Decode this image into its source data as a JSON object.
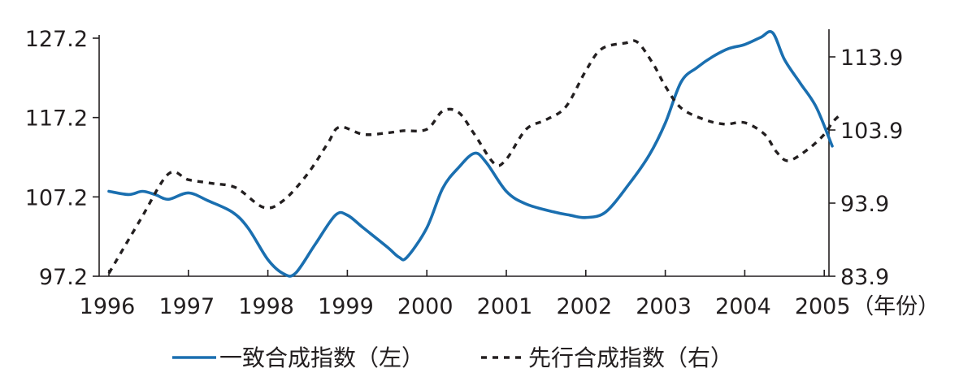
{
  "chart_data": {
    "type": "line",
    "x_unit_label": "（年份）",
    "x_ticks": [
      "1996",
      "1997",
      "1998",
      "1999",
      "2000",
      "2001",
      "2002",
      "2003",
      "2004",
      "2005"
    ],
    "x_range": [
      1996.0,
      2005.1
    ],
    "left_axis": {
      "ticks": [
        "127.2",
        "117.2",
        "107.2",
        "97.2"
      ],
      "range": [
        97.2,
        127.2
      ]
    },
    "right_axis": {
      "ticks": [
        "113.9",
        "103.9",
        "93.9",
        "83.9"
      ],
      "range": [
        83.9,
        116.9
      ]
    },
    "grid": false,
    "legend_position": "bottom",
    "series": [
      {
        "name": "一致合成指数（左）",
        "axis": "left",
        "color": "#1a6fb0",
        "style": "solid",
        "points": [
          [
            1996.0,
            107.9
          ],
          [
            1996.25,
            107.5
          ],
          [
            1996.42,
            107.9
          ],
          [
            1996.58,
            107.5
          ],
          [
            1996.75,
            106.9
          ],
          [
            1997.0,
            107.7
          ],
          [
            1997.25,
            106.7
          ],
          [
            1997.55,
            105.3
          ],
          [
            1997.75,
            103.3
          ],
          [
            1998.0,
            99.3
          ],
          [
            1998.2,
            97.5
          ],
          [
            1998.35,
            97.6
          ],
          [
            1998.6,
            101.3
          ],
          [
            1998.85,
            104.9
          ],
          [
            1999.0,
            104.9
          ],
          [
            1999.2,
            103.3
          ],
          [
            1999.5,
            100.9
          ],
          [
            1999.65,
            99.6
          ],
          [
            1999.75,
            99.6
          ],
          [
            2000.0,
            103.3
          ],
          [
            2000.2,
            108.3
          ],
          [
            2000.4,
            110.9
          ],
          [
            2000.6,
            112.7
          ],
          [
            2000.75,
            111.5
          ],
          [
            2001.0,
            107.9
          ],
          [
            2001.25,
            106.3
          ],
          [
            2001.6,
            105.3
          ],
          [
            2001.8,
            104.9
          ],
          [
            2002.0,
            104.6
          ],
          [
            2002.25,
            105.3
          ],
          [
            2002.55,
            108.9
          ],
          [
            2002.8,
            112.5
          ],
          [
            2003.0,
            116.5
          ],
          [
            2003.2,
            121.7
          ],
          [
            2003.4,
            123.5
          ],
          [
            2003.6,
            124.9
          ],
          [
            2003.8,
            125.9
          ],
          [
            2004.0,
            126.4
          ],
          [
            2004.2,
            127.3
          ],
          [
            2004.35,
            127.9
          ],
          [
            2004.5,
            124.5
          ],
          [
            2004.7,
            121.5
          ],
          [
            2004.9,
            118.5
          ],
          [
            2005.1,
            113.6
          ]
        ]
      },
      {
        "name": "先行合成指数（右）",
        "axis": "right",
        "color": "#231f20",
        "style": "dashed",
        "points": [
          [
            1996.0,
            84.3
          ],
          [
            1996.4,
            91.7
          ],
          [
            1996.75,
            97.9
          ],
          [
            1997.0,
            97.1
          ],
          [
            1997.3,
            96.6
          ],
          [
            1997.6,
            96.0
          ],
          [
            1997.95,
            93.3
          ],
          [
            1998.2,
            94.3
          ],
          [
            1998.5,
            97.9
          ],
          [
            1998.75,
            102.0
          ],
          [
            1998.9,
            104.3
          ],
          [
            1999.2,
            103.3
          ],
          [
            1999.5,
            103.5
          ],
          [
            1999.7,
            103.8
          ],
          [
            2000.0,
            104.0
          ],
          [
            2000.2,
            106.5
          ],
          [
            2000.4,
            106.3
          ],
          [
            2000.6,
            103.3
          ],
          [
            2000.85,
            99.3
          ],
          [
            2001.0,
            99.9
          ],
          [
            2001.25,
            104.0
          ],
          [
            2001.5,
            105.3
          ],
          [
            2001.75,
            107.1
          ],
          [
            2002.0,
            112.0
          ],
          [
            2002.2,
            115.0
          ],
          [
            2002.5,
            115.8
          ],
          [
            2002.65,
            115.9
          ],
          [
            2002.85,
            112.9
          ],
          [
            2003.0,
            109.9
          ],
          [
            2003.2,
            106.9
          ],
          [
            2003.5,
            105.3
          ],
          [
            2003.75,
            104.7
          ],
          [
            2004.0,
            104.9
          ],
          [
            2004.25,
            103.3
          ],
          [
            2004.4,
            100.9
          ],
          [
            2004.55,
            99.7
          ],
          [
            2004.8,
            101.3
          ],
          [
            2005.0,
            103.3
          ],
          [
            2005.1,
            104.9
          ],
          [
            2005.2,
            106.0
          ]
        ]
      }
    ]
  }
}
